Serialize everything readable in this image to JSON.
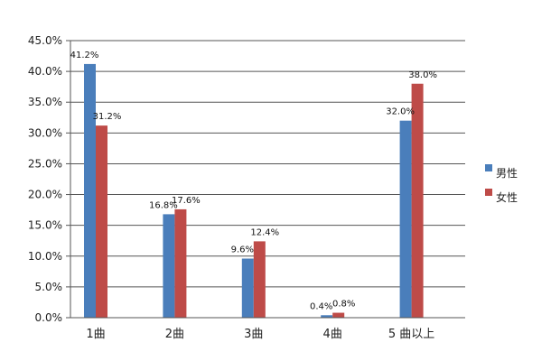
{
  "chart_data": {
    "type": "bar",
    "categories": [
      "1曲",
      "2曲",
      "3曲",
      "4曲",
      "5 曲以上"
    ],
    "series": [
      {
        "name": "男性",
        "values": [
          41.2,
          16.8,
          9.6,
          0.4,
          32.0
        ],
        "labels": [
          "41.2%",
          "16.8%",
          "9.6%",
          "0.4%",
          "32.0%"
        ],
        "color": "#4a7ebb"
      },
      {
        "name": "女性",
        "values": [
          31.2,
          17.6,
          12.4,
          0.8,
          38.0
        ],
        "labels": [
          "31.2%",
          "17.6%",
          "12.4%",
          "0.8%",
          "38.0%"
        ],
        "color": "#be4b48"
      }
    ],
    "ylim": [
      0,
      45
    ],
    "yticks": [
      "0.0%",
      "5.0%",
      "10.0%",
      "15.0%",
      "20.0%",
      "25.0%",
      "30.0%",
      "35.0%",
      "40.0%",
      "45.0%"
    ],
    "title": "",
    "xlabel": "",
    "ylabel": "",
    "grid": true,
    "legend": "right"
  }
}
